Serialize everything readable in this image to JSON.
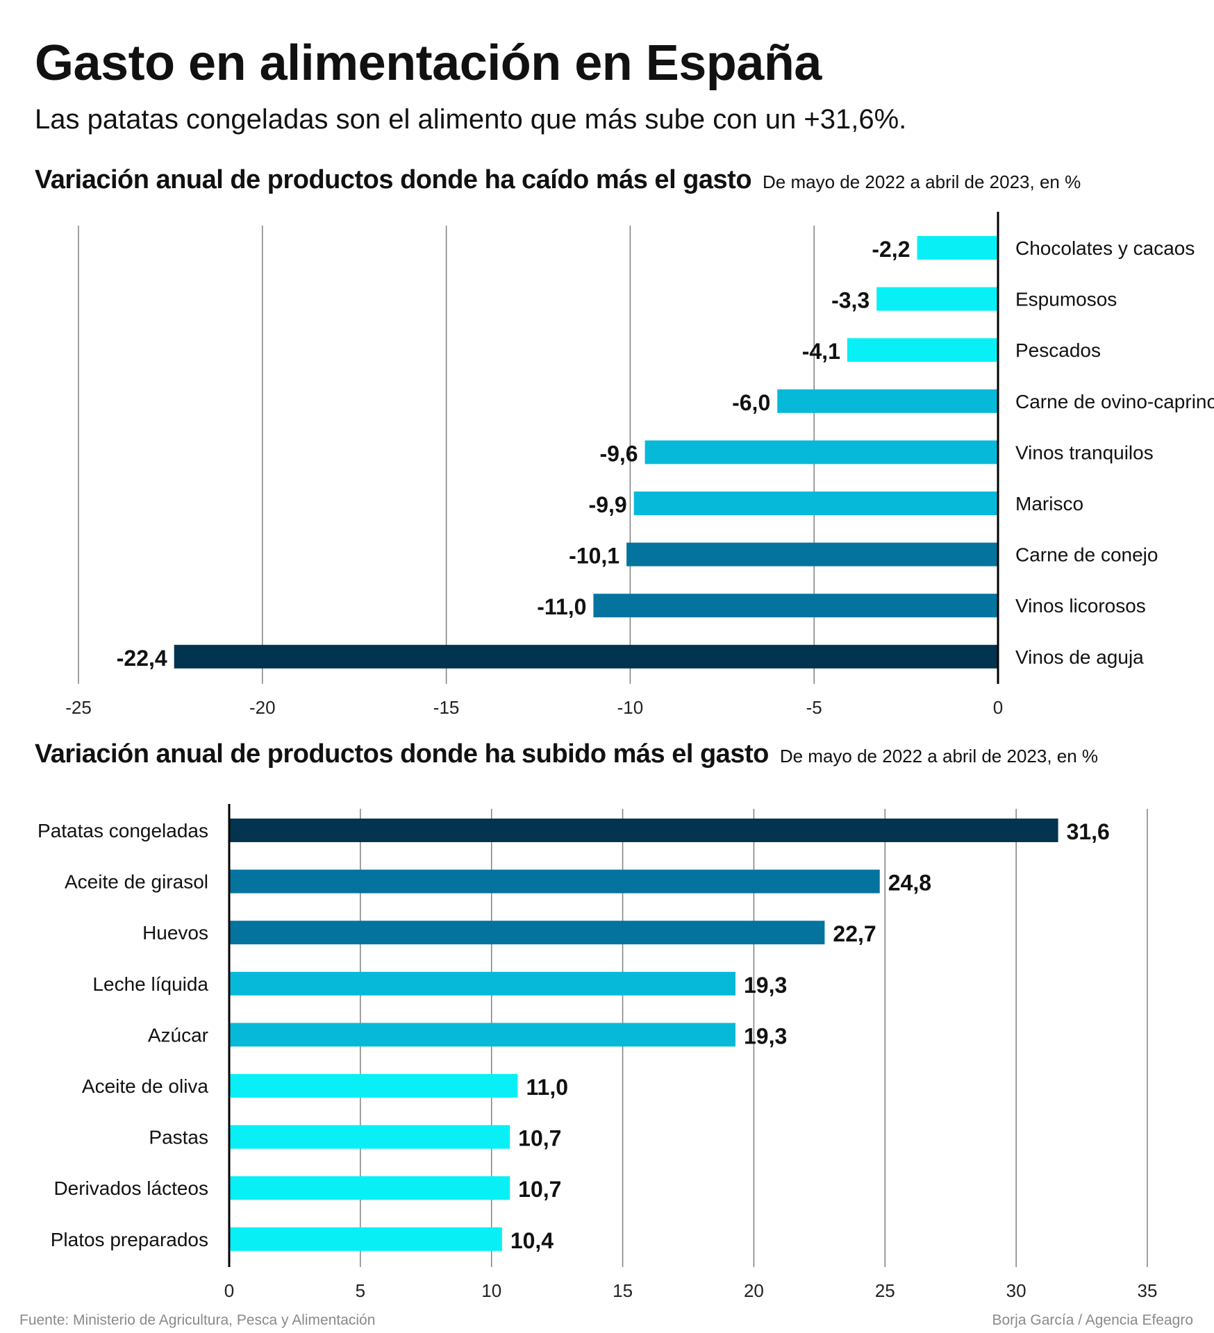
{
  "header": {
    "title": "Gasto en alimentación en España",
    "subtitle": "Las patatas congeladas son el alimento que más sube con un +31,6%."
  },
  "colors": {
    "darkest": "#03344f",
    "dark": "#04749e",
    "medium": "#06b9d9",
    "light": "#08f0f6",
    "gridline": "#808080",
    "axis": "#000000"
  },
  "chart_data": [
    {
      "type": "bar",
      "orientation": "horizontal",
      "title": "Variación anual de productos donde ha caído más el gasto",
      "subtitle": "De mayo de 2022 a abril de 2023, en %",
      "categories": [
        "Chocolates y cacaos",
        "Espumosos",
        "Pescados",
        "Carne de ovino-caprino",
        "Vinos tranquilos",
        "Marisco",
        "Carne de conejo",
        "Vinos licorosos",
        "Vinos de aguja"
      ],
      "values": [
        -2.2,
        -3.3,
        -4.1,
        -6.0,
        -9.6,
        -9.9,
        -10.1,
        -11.0,
        -22.4
      ],
      "value_labels": [
        "-2,2",
        "-3,3",
        "-4,1",
        "-6,0",
        "-9,6",
        "-9,9",
        "-10,1",
        "-11,0",
        "-22,4"
      ],
      "bar_colors": [
        "#08f0f6",
        "#08f0f6",
        "#08f0f6",
        "#06b9d9",
        "#06b9d9",
        "#06b9d9",
        "#04749e",
        "#04749e",
        "#03344f"
      ],
      "xlim": [
        -25,
        0
      ],
      "xticks": [
        -25,
        -20,
        -15,
        -10,
        -5,
        0
      ],
      "xtick_labels": [
        "-25",
        "-20",
        "-15",
        "-10",
        "-5",
        "0"
      ],
      "grid": true
    },
    {
      "type": "bar",
      "orientation": "horizontal",
      "title": "Variación anual de productos donde ha subido más el gasto",
      "subtitle": "De mayo de 2022 a abril de 2023, en %",
      "categories": [
        "Patatas congeladas",
        "Aceite de girasol",
        "Huevos",
        "Leche líquida",
        "Azúcar",
        "Aceite de oliva",
        "Pastas",
        "Derivados lácteos",
        "Platos preparados"
      ],
      "values": [
        31.6,
        24.8,
        22.7,
        19.3,
        19.3,
        11.0,
        10.7,
        10.7,
        10.4
      ],
      "value_labels": [
        "31,6",
        "24,8",
        "22,7",
        "19,3",
        "19,3",
        "11,0",
        "10,7",
        "10,7",
        "10,4"
      ],
      "bar_colors": [
        "#03344f",
        "#04749e",
        "#04749e",
        "#06b9d9",
        "#06b9d9",
        "#08f0f6",
        "#08f0f6",
        "#08f0f6",
        "#08f0f6"
      ],
      "xlim": [
        0,
        35
      ],
      "xticks": [
        0,
        5,
        10,
        15,
        20,
        25,
        30,
        35
      ],
      "xtick_labels": [
        "0",
        "5",
        "10",
        "15",
        "20",
        "25",
        "30",
        "35"
      ],
      "grid": true
    }
  ],
  "footer": {
    "source": "Fuente: Ministerio de Agricultura, Pesca y Alimentación",
    "credit": "Borja García / Agencia Efeagro"
  }
}
